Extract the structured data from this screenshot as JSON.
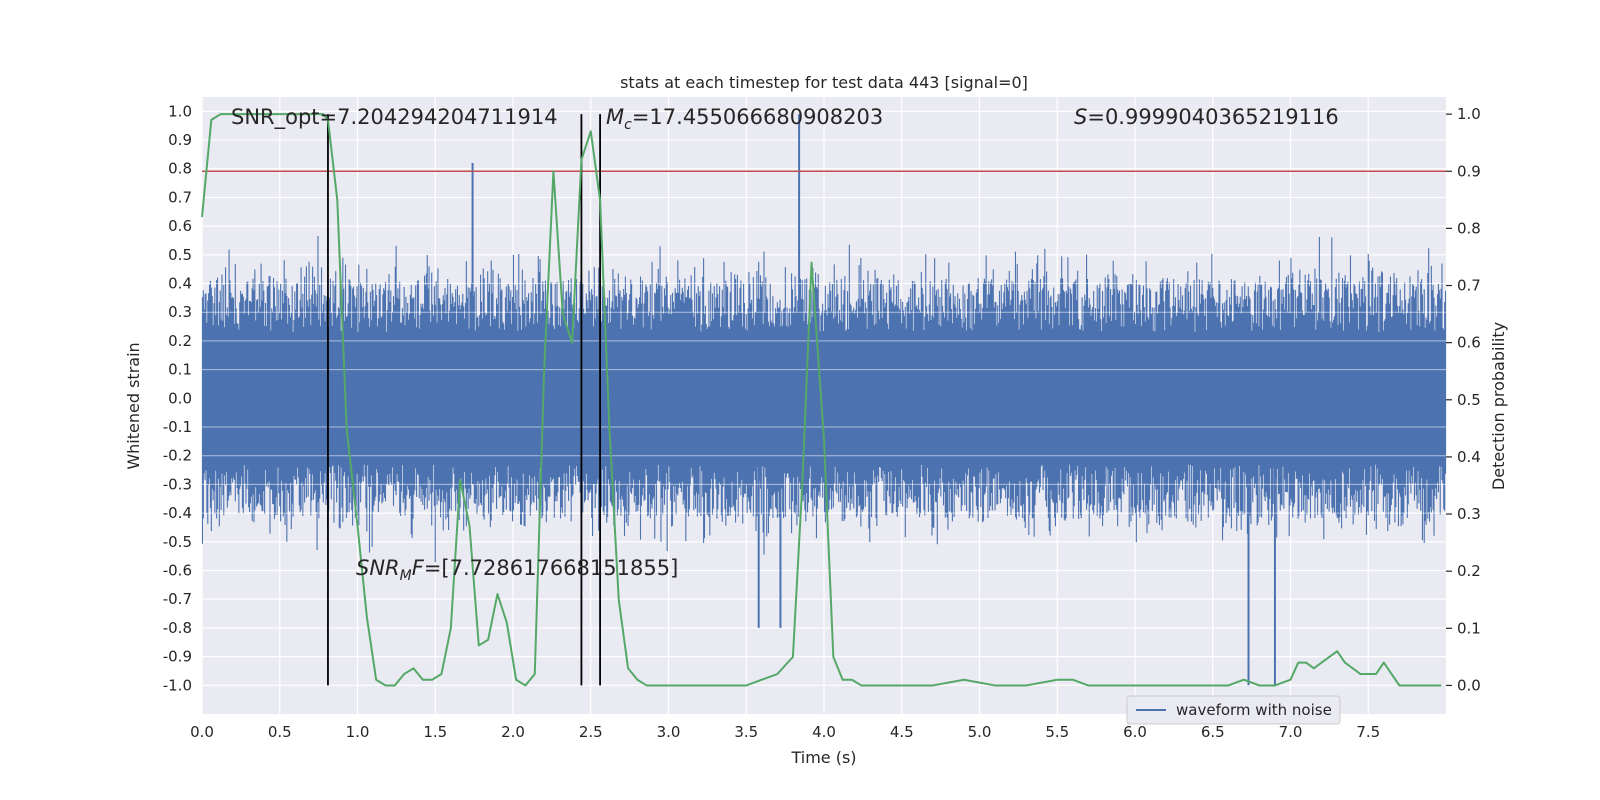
{
  "chart_data": {
    "type": "line",
    "title": "stats at each timestep for test data 443 [signal=0]",
    "xlabel": "Time (s)",
    "ylabel_left": "Whitened strain",
    "ylabel_right": "Detection probability",
    "xlim": [
      0.0,
      8.0
    ],
    "ylim_left": [
      -1.1,
      1.05
    ],
    "ylim_right": [
      -0.05,
      1.03
    ],
    "x_ticks": [
      "0.0",
      "0.5",
      "1.0",
      "1.5",
      "2.0",
      "2.5",
      "3.0",
      "3.5",
      "4.0",
      "4.5",
      "5.0",
      "5.5",
      "6.0",
      "6.5",
      "7.0",
      "7.5"
    ],
    "y_left_ticks": [
      "1.0",
      "0.9",
      "0.8",
      "0.7",
      "0.6",
      "0.5",
      "0.4",
      "0.3",
      "0.2",
      "0.1",
      "0.0",
      "-0.1",
      "-0.2",
      "-0.3",
      "-0.4",
      "-0.5",
      "-0.6",
      "-0.7",
      "-0.8",
      "-0.9",
      "-1.0"
    ],
    "y_right_ticks": [
      "1.0",
      "0.9",
      "0.8",
      "0.7",
      "0.6",
      "0.5",
      "0.4",
      "0.3",
      "0.2",
      "0.1",
      "0.0"
    ],
    "threshold": 0.9,
    "vertical_lines": [
      0.81,
      2.44,
      2.56
    ],
    "annotations": {
      "snr_opt": "SNR_opt=7.204294204711914",
      "mc_symbol": "M",
      "mc_sub": "c",
      "mc_value": "=17.455066680908203",
      "s_symbol": "S",
      "s_value": "=0.9999040365219116",
      "snr_mf_symbol": "SNR",
      "snr_mf_sub": "M",
      "snr_mf_f": "F",
      "snr_mf_value": "=[7.728617668151855]"
    },
    "legend": "waveform with noise",
    "waveform": {
      "name": "waveform with noise",
      "duration_s": 8.0,
      "core_band": [
        -0.16,
        0.16
      ],
      "typical_envelope": [
        -0.42,
        0.42
      ],
      "notable_peaks": [
        {
          "t": 1.74,
          "v": 0.82
        },
        {
          "t": 3.84,
          "v": 0.99
        },
        {
          "t": 6.73,
          "v": -1.0
        },
        {
          "t": 6.9,
          "v": -1.0
        },
        {
          "t": 3.72,
          "v": -0.8
        },
        {
          "t": 3.58,
          "v": -0.8
        }
      ]
    },
    "probability": {
      "name": "Detection probability",
      "x": [
        0.0,
        0.06,
        0.12,
        0.2,
        0.3,
        0.4,
        0.5,
        0.6,
        0.7,
        0.78,
        0.81,
        0.87,
        0.93,
        1.0,
        1.06,
        1.12,
        1.18,
        1.24,
        1.3,
        1.36,
        1.42,
        1.48,
        1.54,
        1.6,
        1.66,
        1.72,
        1.78,
        1.84,
        1.9,
        1.96,
        2.02,
        2.08,
        2.14,
        2.2,
        2.26,
        2.32,
        2.38,
        2.44,
        2.5,
        2.56,
        2.62,
        2.68,
        2.74,
        2.8,
        2.86,
        2.92,
        3.0,
        3.1,
        3.2,
        3.3,
        3.4,
        3.5,
        3.6,
        3.7,
        3.8,
        3.86,
        3.92,
        4.0,
        4.06,
        4.12,
        4.18,
        4.24,
        4.35,
        4.5,
        4.7,
        4.9,
        5.1,
        5.3,
        5.5,
        5.6,
        5.7,
        5.9,
        6.1,
        6.3,
        6.5,
        6.6,
        6.7,
        6.8,
        6.9,
        7.0,
        7.05,
        7.1,
        7.15,
        7.2,
        7.3,
        7.35,
        7.45,
        7.55,
        7.6,
        7.65,
        7.7,
        7.75,
        7.8,
        7.9,
        7.97
      ],
      "values": [
        0.82,
        0.99,
        1.0,
        1.0,
        1.0,
        1.0,
        1.0,
        1.0,
        1.0,
        1.0,
        0.99,
        0.85,
        0.45,
        0.28,
        0.12,
        0.01,
        0.0,
        0.0,
        0.02,
        0.03,
        0.01,
        0.01,
        0.02,
        0.1,
        0.36,
        0.28,
        0.07,
        0.08,
        0.16,
        0.11,
        0.01,
        0.0,
        0.02,
        0.55,
        0.9,
        0.65,
        0.6,
        0.92,
        0.97,
        0.85,
        0.45,
        0.15,
        0.03,
        0.01,
        0.0,
        0.0,
        0.0,
        0.0,
        0.0,
        0.0,
        0.0,
        0.0,
        0.01,
        0.02,
        0.05,
        0.35,
        0.74,
        0.43,
        0.05,
        0.01,
        0.01,
        0.0,
        0.0,
        0.0,
        0.0,
        0.01,
        0.0,
        0.0,
        0.01,
        0.01,
        0.0,
        0.0,
        0.0,
        0.0,
        0.0,
        0.0,
        0.01,
        0.0,
        0.0,
        0.01,
        0.04,
        0.04,
        0.03,
        0.04,
        0.06,
        0.04,
        0.02,
        0.02,
        0.04,
        0.02,
        0.0,
        0.0,
        0.0,
        0.0,
        0.0
      ]
    }
  }
}
